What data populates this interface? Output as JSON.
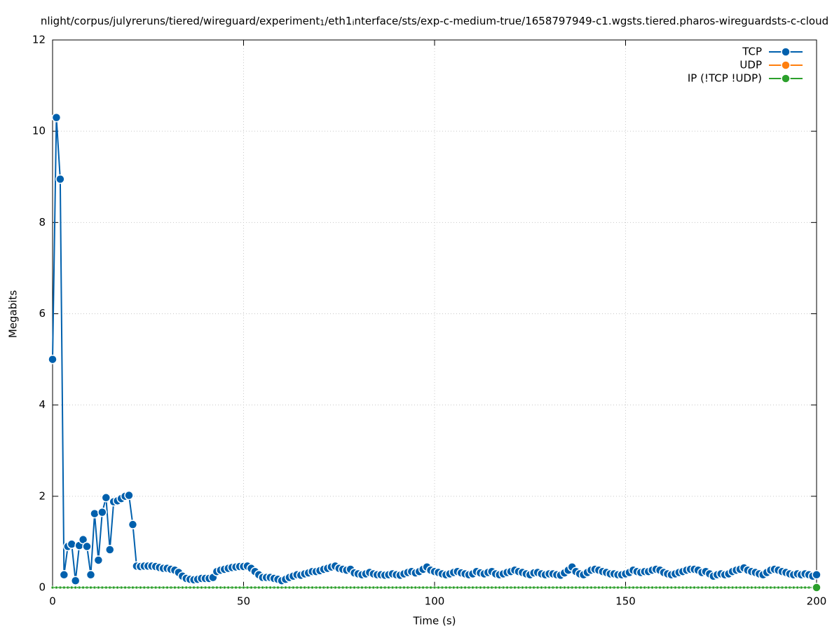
{
  "chart_data": {
    "type": "line",
    "title_parts": [
      "nlight/corpus/julyreruns/tiered/wireguard/experiment",
      "1",
      "/eth1",
      "i",
      "nterface/sts/exp-c-medium-true/1658797949-c1.wgsts.tiered.pharos-wireguardsts-c-cloud"
    ],
    "xlabel": "Time (s)",
    "ylabel": "Megabits",
    "xlim": [
      0,
      200
    ],
    "ylim": [
      0,
      12
    ],
    "xticks": [
      0,
      50,
      100,
      150,
      200
    ],
    "yticks": [
      0,
      2,
      4,
      6,
      8,
      10,
      12
    ],
    "grid": true,
    "legend": "top-right",
    "x": [
      0,
      1,
      2,
      3,
      4,
      5,
      6,
      7,
      8,
      9,
      10,
      11,
      12,
      13,
      14,
      15,
      16,
      17,
      18,
      19,
      20,
      21,
      22,
      23,
      24,
      25,
      26,
      27,
      28,
      29,
      30,
      31,
      32,
      33,
      34,
      35,
      36,
      37,
      38,
      39,
      40,
      41,
      42,
      43,
      44,
      45,
      46,
      47,
      48,
      49,
      50,
      51,
      52,
      53,
      54,
      55,
      56,
      57,
      58,
      59,
      60,
      61,
      62,
      63,
      64,
      65,
      66,
      67,
      68,
      69,
      70,
      71,
      72,
      73,
      74,
      75,
      76,
      77,
      78,
      79,
      80,
      81,
      82,
      83,
      84,
      85,
      86,
      87,
      88,
      89,
      90,
      91,
      92,
      93,
      94,
      95,
      96,
      97,
      98,
      99,
      100,
      101,
      102,
      103,
      104,
      105,
      106,
      107,
      108,
      109,
      110,
      111,
      112,
      113,
      114,
      115,
      116,
      117,
      118,
      119,
      120,
      121,
      122,
      123,
      124,
      125,
      126,
      127,
      128,
      129,
      130,
      131,
      132,
      133,
      134,
      135,
      136,
      137,
      138,
      139,
      140,
      141,
      142,
      143,
      144,
      145,
      146,
      147,
      148,
      149,
      150,
      151,
      152,
      153,
      154,
      155,
      156,
      157,
      158,
      159,
      160,
      161,
      162,
      163,
      164,
      165,
      166,
      167,
      168,
      169,
      170,
      171,
      172,
      173,
      174,
      175,
      176,
      177,
      178,
      179,
      180,
      181,
      182,
      183,
      184,
      185,
      186,
      187,
      188,
      189,
      190,
      191,
      192,
      193,
      194,
      195,
      196,
      197,
      198,
      199,
      200
    ],
    "series": [
      {
        "name": "TCP",
        "color": "#0060ad",
        "values": [
          5.0,
          10.3,
          8.95,
          0.28,
          0.9,
          0.95,
          0.15,
          0.92,
          1.05,
          0.9,
          0.28,
          1.62,
          0.6,
          1.65,
          1.97,
          0.83,
          1.88,
          1.9,
          1.95,
          2.0,
          2.02,
          1.38,
          0.47,
          0.46,
          0.47,
          0.47,
          0.47,
          0.46,
          0.44,
          0.42,
          0.42,
          0.4,
          0.38,
          0.33,
          0.25,
          0.2,
          0.18,
          0.17,
          0.18,
          0.2,
          0.2,
          0.2,
          0.22,
          0.35,
          0.38,
          0.4,
          0.42,
          0.44,
          0.45,
          0.46,
          0.46,
          0.47,
          0.42,
          0.35,
          0.28,
          0.22,
          0.22,
          0.22,
          0.2,
          0.18,
          0.15,
          0.18,
          0.22,
          0.25,
          0.28,
          0.27,
          0.3,
          0.32,
          0.35,
          0.35,
          0.37,
          0.4,
          0.42,
          0.45,
          0.47,
          0.42,
          0.4,
          0.38,
          0.4,
          0.32,
          0.3,
          0.28,
          0.3,
          0.33,
          0.3,
          0.28,
          0.28,
          0.27,
          0.28,
          0.3,
          0.28,
          0.27,
          0.3,
          0.33,
          0.35,
          0.32,
          0.35,
          0.4,
          0.45,
          0.38,
          0.35,
          0.33,
          0.3,
          0.28,
          0.3,
          0.33,
          0.35,
          0.32,
          0.3,
          0.28,
          0.3,
          0.35,
          0.32,
          0.3,
          0.33,
          0.35,
          0.3,
          0.28,
          0.3,
          0.33,
          0.35,
          0.38,
          0.35,
          0.33,
          0.3,
          0.28,
          0.32,
          0.33,
          0.3,
          0.28,
          0.3,
          0.3,
          0.28,
          0.27,
          0.32,
          0.38,
          0.45,
          0.35,
          0.3,
          0.28,
          0.33,
          0.38,
          0.4,
          0.38,
          0.35,
          0.33,
          0.3,
          0.3,
          0.28,
          0.28,
          0.3,
          0.33,
          0.38,
          0.35,
          0.33,
          0.35,
          0.35,
          0.38,
          0.4,
          0.38,
          0.33,
          0.3,
          0.28,
          0.3,
          0.33,
          0.35,
          0.38,
          0.4,
          0.4,
          0.38,
          0.33,
          0.35,
          0.3,
          0.25,
          0.28,
          0.3,
          0.28,
          0.3,
          0.35,
          0.38,
          0.4,
          0.43,
          0.38,
          0.35,
          0.33,
          0.3,
          0.28,
          0.33,
          0.38,
          0.4,
          0.38,
          0.35,
          0.33,
          0.3,
          0.28,
          0.3,
          0.28,
          0.3,
          0.28,
          0.25,
          0.28
        ]
      },
      {
        "name": "UDP",
        "color": "#ff7f0e",
        "values": [
          0,
          0,
          0,
          0,
          0,
          0,
          0,
          0,
          0,
          0,
          0,
          0,
          0,
          0,
          0,
          0,
          0,
          0,
          0,
          0,
          0,
          0,
          0,
          0,
          0,
          0,
          0,
          0,
          0,
          0,
          0,
          0,
          0,
          0,
          0,
          0,
          0,
          0,
          0,
          0,
          0,
          0,
          0,
          0,
          0,
          0,
          0,
          0,
          0,
          0,
          0,
          0,
          0,
          0,
          0,
          0,
          0,
          0,
          0,
          0,
          0,
          0,
          0,
          0,
          0,
          0,
          0,
          0,
          0,
          0,
          0,
          0,
          0,
          0,
          0,
          0,
          0,
          0,
          0,
          0,
          0,
          0,
          0,
          0,
          0,
          0,
          0,
          0,
          0,
          0,
          0,
          0,
          0,
          0,
          0,
          0,
          0,
          0,
          0,
          0,
          0,
          0,
          0,
          0,
          0,
          0,
          0,
          0,
          0,
          0,
          0,
          0,
          0,
          0,
          0,
          0,
          0,
          0,
          0,
          0,
          0,
          0,
          0,
          0,
          0,
          0,
          0,
          0,
          0,
          0,
          0,
          0,
          0,
          0,
          0,
          0,
          0,
          0,
          0,
          0,
          0,
          0,
          0,
          0,
          0,
          0,
          0,
          0,
          0,
          0,
          0,
          0,
          0,
          0,
          0,
          0,
          0,
          0,
          0,
          0,
          0,
          0,
          0,
          0,
          0,
          0,
          0,
          0,
          0,
          0,
          0,
          0,
          0,
          0,
          0,
          0,
          0,
          0,
          0,
          0,
          0,
          0,
          0,
          0,
          0,
          0,
          0,
          0,
          0,
          0,
          0,
          0,
          0,
          0,
          0,
          0,
          0,
          0,
          0,
          0,
          0
        ]
      },
      {
        "name": "IP (!TCP  !UDP)",
        "color": "#2ca02c",
        "values": [
          0,
          0,
          0,
          0,
          0,
          0,
          0,
          0,
          0,
          0,
          0,
          0,
          0,
          0,
          0,
          0,
          0,
          0,
          0,
          0,
          0,
          0,
          0,
          0,
          0,
          0,
          0,
          0,
          0,
          0,
          0,
          0,
          0,
          0,
          0,
          0,
          0,
          0,
          0,
          0,
          0,
          0,
          0,
          0,
          0,
          0,
          0,
          0,
          0,
          0,
          0,
          0,
          0,
          0,
          0,
          0,
          0,
          0,
          0,
          0,
          0,
          0,
          0,
          0,
          0,
          0,
          0,
          0,
          0,
          0,
          0,
          0,
          0,
          0,
          0,
          0,
          0,
          0,
          0,
          0,
          0,
          0,
          0,
          0,
          0,
          0,
          0,
          0,
          0,
          0,
          0,
          0,
          0,
          0,
          0,
          0,
          0,
          0,
          0,
          0,
          0,
          0,
          0,
          0,
          0,
          0,
          0,
          0,
          0,
          0,
          0,
          0,
          0,
          0,
          0,
          0,
          0,
          0,
          0,
          0,
          0,
          0,
          0,
          0,
          0,
          0,
          0,
          0,
          0,
          0,
          0,
          0,
          0,
          0,
          0,
          0,
          0,
          0,
          0,
          0,
          0,
          0,
          0,
          0,
          0,
          0,
          0,
          0,
          0,
          0,
          0,
          0,
          0,
          0,
          0,
          0,
          0,
          0,
          0,
          0,
          0,
          0,
          0,
          0,
          0,
          0,
          0,
          0,
          0,
          0,
          0,
          0,
          0,
          0,
          0,
          0,
          0,
          0,
          0,
          0,
          0,
          0,
          0,
          0,
          0,
          0,
          0,
          0,
          0,
          0,
          0,
          0,
          0,
          0,
          0,
          0,
          0,
          0,
          0,
          0,
          0
        ]
      }
    ]
  }
}
